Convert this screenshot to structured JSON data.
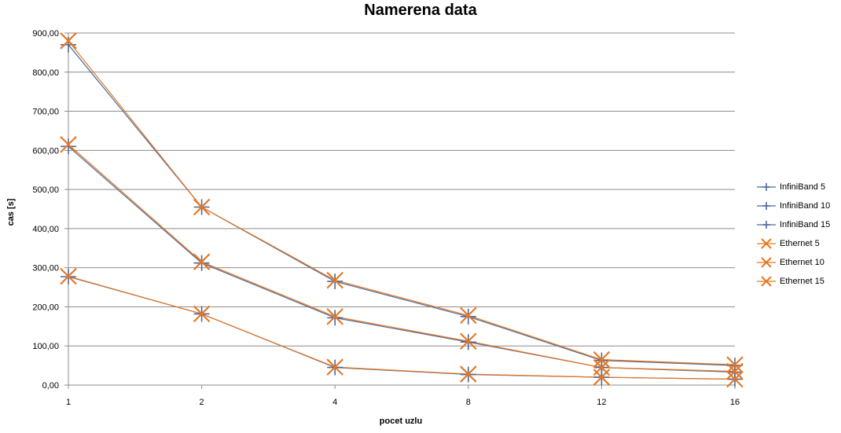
{
  "chart_data": {
    "type": "line",
    "title": "Namerena data",
    "xlabel": "pocet uzlu",
    "ylabel": "cas [s]",
    "categories": [
      "1",
      "2",
      "4",
      "8",
      "12",
      "16"
    ],
    "ylim": [
      0,
      900
    ],
    "ytick_labels": [
      "0,00",
      "100,00",
      "200,00",
      "300,00",
      "400,00",
      "500,00",
      "600,00",
      "700,00",
      "800,00",
      "900,00"
    ],
    "grid": true,
    "legend_position": "right",
    "series": [
      {
        "name": "InfiniBand 5",
        "values": [
          277,
          182,
          45,
          27,
          20,
          15
        ],
        "color": "#4a6a9a",
        "marker": "plus"
      },
      {
        "name": "InfiniBand 10",
        "values": [
          610,
          312,
          172,
          110,
          45,
          33
        ],
        "color": "#4a6a9a",
        "marker": "plus"
      },
      {
        "name": "InfiniBand 15",
        "values": [
          870,
          455,
          265,
          175,
          63,
          50
        ],
        "color": "#4a6a9a",
        "marker": "plus"
      },
      {
        "name": "Ethernet 5",
        "values": [
          278,
          182,
          46,
          28,
          20,
          15
        ],
        "color": "#e87722",
        "marker": "x"
      },
      {
        "name": "Ethernet 10",
        "values": [
          615,
          315,
          175,
          112,
          45,
          35
        ],
        "color": "#e87722",
        "marker": "x"
      },
      {
        "name": "Ethernet 15",
        "values": [
          880,
          455,
          268,
          178,
          65,
          52
        ],
        "color": "#e87722",
        "marker": "x"
      }
    ]
  }
}
